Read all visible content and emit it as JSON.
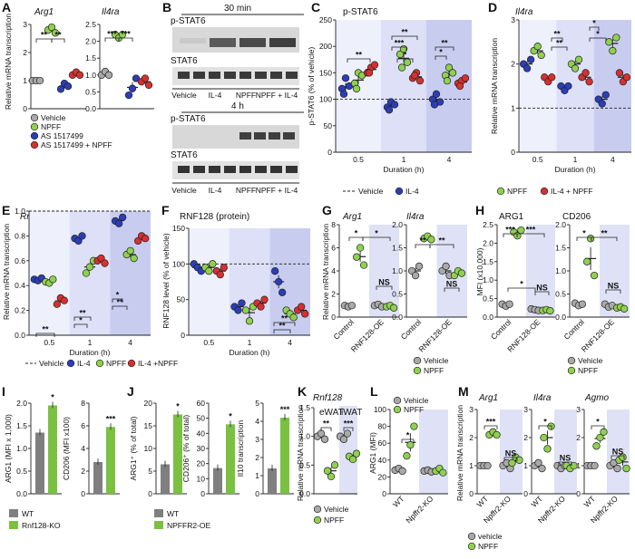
{
  "colors": {
    "vehicle": "#a9a9a9",
    "il4": "#2b3db8",
    "npff": "#8fd14f",
    "il4npff": "#d7302f",
    "wt": "#7f7f7f",
    "ko": "#7ac142"
  },
  "panels": {
    "A": {
      "label": "A",
      "ylabel": "Relative mRNA transcription",
      "gene1": "Arg1",
      "gene2": "Il4ra",
      "yticks": [
        "0",
        "1",
        "2",
        "3"
      ],
      "y2ticks": [
        "0.0",
        "0.5",
        "1.0",
        "1.5",
        "2.0",
        "2.5"
      ],
      "legend": [
        "Vehicle",
        "NPFF",
        "AS 1517499",
        "AS 1517499 + NPFF"
      ],
      "sig1": [
        "**",
        "**"
      ],
      "sig2": [
        "***",
        "***"
      ]
    },
    "B": {
      "label": "B",
      "t1": "30 min",
      "t2": "4 h",
      "row1": "p-STAT6",
      "row2": "STAT6",
      "lanes": [
        "Vehicle",
        "IL-4",
        "NPFF",
        "NPFF + IL-4"
      ]
    },
    "C": {
      "label": "C",
      "title": "p-STAT6",
      "ylabel": "p-STAT6 (% of vehicle)",
      "xlabel": "Duration (h)",
      "xt": [
        "0.5",
        "1",
        "4"
      ],
      "yticks": [
        "0",
        "50",
        "100",
        "150",
        "200",
        "250"
      ],
      "legend": [
        "Vehicle",
        "IL-4",
        "NPFF",
        "IL-4 + NPFF"
      ]
    },
    "D": {
      "label": "D",
      "title": "Il4ra",
      "ylabel": "Relative mRNA transcription",
      "xlabel": "Duration (h)",
      "xt": [
        "0.5",
        "1",
        "4"
      ],
      "yticks": [
        "0",
        "1",
        "2",
        "3"
      ]
    },
    "E": {
      "label": "E",
      "title": "Rnf128",
      "ylabel": "Relative mRNA transcription",
      "xlabel": "Duration (h)",
      "xt": [
        "0.5",
        "1",
        "4"
      ],
      "yticks": [
        "0.0",
        "0.2",
        "0.4",
        "0.6",
        "0.8",
        "1.0"
      ],
      "legend": [
        "Vehicle",
        "IL-4",
        "NPFF",
        "IL-4 +NPFF"
      ]
    },
    "F": {
      "label": "F",
      "title": "RNF128 (protein)",
      "ylabel": "RNF128 level (% of vehicle)",
      "xlabel": "Duration (h)",
      "xt": [
        "0.5",
        "1",
        "4"
      ],
      "yticks": [
        "0",
        "50",
        "100",
        "150"
      ]
    },
    "G": {
      "label": "G",
      "gene1": "Arg1",
      "gene2": "Il4ra",
      "ylabel": "Relative mRNA transcription",
      "xt": [
        "Control",
        "RNF128-OE"
      ],
      "yticks": [
        "0",
        "2",
        "4",
        "6",
        "8"
      ],
      "y2ticks": [
        "0.0",
        "0.5",
        "1.0",
        "1.5",
        "2.0"
      ],
      "legend": [
        "Vehicle",
        "NPFF"
      ]
    },
    "H": {
      "label": "H",
      "t1": "ARG1",
      "t2": "CD206",
      "ylabel": "MFI (x10,000)",
      "xt": [
        "Control",
        "RNF128-OE"
      ],
      "yticks": [
        "0.0",
        "0.5",
        "1.0",
        "1.5",
        "2.0",
        "2.5"
      ],
      "y2ticks": [
        "0.0",
        "0.5",
        "1.0",
        "1.5",
        "2.0"
      ],
      "legend": [
        "Vehicle",
        "NPFF"
      ]
    },
    "I": {
      "label": "I",
      "y1": "ARG1 (MFI x 1,000)",
      "y2": "CD206 (MFI x100)",
      "y1t": [
        "0.0",
        "0.5",
        "1.0",
        "1.5",
        "2.0"
      ],
      "y2t": [
        "0",
        "2",
        "4",
        "6",
        "8"
      ],
      "legend": [
        "WT",
        "Rnf128-KO"
      ]
    },
    "J": {
      "label": "J",
      "y1": "ARG1⁺ (% of total)",
      "y2": "CD206⁺ (% of total)",
      "y3": "Il10 transcription",
      "y1t": [
        "0",
        "5",
        "10",
        "15",
        "20"
      ],
      "y2t": [
        "0",
        "10",
        "20",
        "30",
        "40",
        "50",
        "60"
      ],
      "y3t": [
        "0",
        "1",
        "2",
        "3",
        "4",
        "5"
      ],
      "legend": [
        "WT",
        "NPFFR2-OE"
      ]
    },
    "K": {
      "label": "K",
      "title": "Rnf128",
      "ylabel": "Relative mRNA transcription",
      "s1": "eWAT",
      "s2": "iWAT",
      "yticks": [
        "0.0",
        "0.5",
        "1.0",
        "1.5"
      ],
      "legend": [
        "Vehicle",
        "NPFF"
      ]
    },
    "L": {
      "label": "L",
      "ylabel": "ARG1 (MFI)",
      "xt": [
        "WT",
        "Npffr2-KO"
      ],
      "yticks": [
        "0",
        "20",
        "40",
        "60",
        "80",
        "100"
      ],
      "legend": [
        "Vehicle",
        "NPFF"
      ]
    },
    "M": {
      "label": "M",
      "g1": "Arg1",
      "g2": "Il4ra",
      "g3": "Agmo",
      "ylabel": "Relative mRNA transcription",
      "xt": [
        "WT",
        "Npffr2-KO"
      ],
      "y1t": [
        "0",
        "1",
        "2",
        "3"
      ],
      "y2t": [
        "0",
        "1",
        "2",
        "3"
      ],
      "y3t": [
        "0",
        "1",
        "2",
        "3"
      ],
      "legend": [
        "vehicle",
        "NPFF"
      ]
    }
  },
  "chart_data": [
    {
      "panel": "A",
      "type": "scatter",
      "series": [
        {
          "name": "Vehicle",
          "Arg1": [
            1.0,
            1.0,
            1.0
          ],
          "Il4ra": [
            1.0,
            1.1,
            1.0
          ]
        },
        {
          "name": "NPFF",
          "Arg1": [
            2.8,
            2.9,
            2.7
          ],
          "Il4ra": [
            2.2,
            2.1,
            2.2
          ]
        },
        {
          "name": "AS 1517499",
          "Arg1": [
            0.7,
            0.9,
            0.8
          ],
          "Il4ra": [
            0.4,
            0.6,
            0.9
          ]
        },
        {
          "name": "AS 1517499 + NPFF",
          "Arg1": [
            1.2,
            1.3,
            1.2
          ],
          "Il4ra": [
            0.8,
            0.9,
            0.7
          ]
        }
      ]
    },
    {
      "panel": "C",
      "type": "scatter",
      "x": [
        "0.5",
        "1",
        "4"
      ],
      "series": [
        {
          "name": "IL-4",
          "values": [
            [
              120,
              140,
              125,
              110
            ],
            [
              85,
              95,
              90,
              80
            ],
            [
              100,
              110,
              95,
              90
            ]
          ]
        },
        {
          "name": "NPFF",
          "values": [
            [
              130,
              150,
              145,
              120
            ],
            [
              185,
              195,
              170,
              160
            ],
            [
              145,
              160,
              150,
              135
            ]
          ]
        },
        {
          "name": "IL-4 + NPFF",
          "values": [
            [
              150,
              160,
              165,
              150
            ],
            [
              140,
              150,
              135,
              145
            ],
            [
              130,
              135,
              140,
              125
            ]
          ]
        }
      ]
    },
    {
      "panel": "D",
      "type": "scatter",
      "x": [
        "0.5",
        "1",
        "4"
      ],
      "series": [
        {
          "name": "IL-4",
          "values": [
            [
              2.0,
              1.9,
              2.1
            ],
            [
              1.5,
              1.4,
              1.5
            ],
            [
              1.2,
              1.1,
              1.3
            ]
          ]
        },
        {
          "name": "NPFF",
          "values": [
            [
              2.3,
              2.4,
              2.2
            ],
            [
              2.0,
              1.9,
              2.1
            ],
            [
              2.5,
              2.3,
              2.6
            ]
          ]
        },
        {
          "name": "IL-4 + NPFF",
          "values": [
            [
              1.7,
              1.6,
              1.7
            ],
            [
              1.7,
              1.8,
              1.6
            ],
            [
              1.8,
              1.6,
              1.7
            ]
          ]
        }
      ]
    },
    {
      "panel": "E",
      "type": "scatter",
      "x": [
        "0.5",
        "1",
        "4"
      ],
      "series": [
        {
          "name": "IL-4",
          "values": [
            [
              0.45,
              0.44,
              0.46
            ],
            [
              0.78,
              0.76,
              0.8
            ],
            [
              0.92,
              0.9,
              0.95
            ]
          ]
        },
        {
          "name": "NPFF",
          "values": [
            [
              0.43,
              0.42,
              0.45
            ],
            [
              0.5,
              0.55,
              0.6
            ],
            [
              0.65,
              0.68,
              0.62
            ]
          ]
        },
        {
          "name": "IL-4 +NPFF",
          "values": [
            [
              0.25,
              0.3,
              0.28
            ],
            [
              0.6,
              0.62,
              0.58
            ],
            [
              0.76,
              0.8,
              0.78
            ]
          ]
        }
      ]
    },
    {
      "panel": "F",
      "type": "scatter",
      "x": [
        "0.5",
        "1",
        "4"
      ],
      "series": [
        {
          "name": "IL-4",
          "values": [
            [
              100,
              95,
              90
            ],
            [
              40,
              35,
              45
            ],
            [
              90,
              75,
              60
            ]
          ]
        },
        {
          "name": "NPFF",
          "values": [
            [
              95,
              90,
              100
            ],
            [
              35,
              20,
              40
            ],
            [
              35,
              30,
              25
            ]
          ]
        },
        {
          "name": "IL-4 + NPFF",
          "values": [
            [
              90,
              85,
              95
            ],
            [
              45,
              40,
              50
            ],
            [
              35,
              40,
              30
            ]
          ]
        }
      ]
    },
    {
      "panel": "G",
      "type": "scatter",
      "x": [
        "Control",
        "RNF128-OE"
      ],
      "series": [
        {
          "name": "Vehicle",
          "Arg1": [
            [
              1.0,
              0.9,
              1.0
            ],
            [
              1.0,
              1.1,
              0.9
            ]
          ],
          "Il4ra": [
            [
              1.0,
              0.9,
              1.1
            ],
            [
              1.0,
              1.1,
              0.9
            ]
          ]
        },
        {
          "name": "NPFF",
          "Arg1": [
            [
              5.2,
              6.0,
              4.5
            ],
            [
              0.9,
              1.0,
              0.8
            ]
          ],
          "Il4ra": [
            [
              1.7,
              1.75,
              1.68
            ],
            [
              0.9,
              1.0,
              0.95
            ]
          ]
        }
      ]
    },
    {
      "panel": "H",
      "type": "scatter",
      "x": [
        "Control",
        "RNF128-OE"
      ],
      "series": [
        {
          "name": "Vehicle",
          "ARG1": [
            [
              0.35,
              0.3,
              0.35
            ],
            [
              0.22,
              0.2,
              0.18
            ]
          ],
          "CD206": [
            [
              0.3,
              0.25,
              0.28
            ],
            [
              0.28,
              0.22,
              0.25
            ]
          ]
        },
        {
          "name": "NPFF",
          "ARG1": [
            [
              2.3,
              2.2,
              2.35
            ],
            [
              0.18,
              0.2,
              0.17
            ]
          ],
          "CD206": [
            [
              1.2,
              1.7,
              0.9
            ],
            [
              0.2,
              0.22,
              0.18
            ]
          ]
        }
      ]
    },
    {
      "panel": "I",
      "type": "bar",
      "categories": [
        "WT",
        "Rnf128-KO"
      ],
      "ARG1": [
        1.35,
        1.95
      ],
      "CD206": [
        2.8,
        5.9
      ]
    },
    {
      "panel": "J",
      "type": "bar",
      "categories": [
        "WT",
        "NPFFR2-OE"
      ],
      "ARG1": [
        6.5,
        17.5
      ],
      "CD206": [
        17,
        46
      ],
      "Il10": [
        1.4,
        4.2
      ]
    },
    {
      "panel": "K",
      "type": "scatter",
      "series": [
        {
          "name": "Vehicle",
          "eWAT": [
            1.0,
            1.05,
            0.95
          ],
          "iWAT": [
            1.0,
            0.95,
            1.05
          ]
        },
        {
          "name": "NPFF",
          "eWAT": [
            0.4,
            0.3,
            0.5
          ],
          "iWAT": [
            0.65,
            0.6,
            0.7
          ]
        }
      ]
    },
    {
      "panel": "L",
      "type": "scatter",
      "x": [
        "WT",
        "Npffr2-KO"
      ],
      "series": [
        {
          "name": "Vehicle",
          "values": [
            [
              28,
              30,
              27
            ],
            [
              27,
              28,
              26
            ]
          ]
        },
        {
          "name": "NPFF",
          "values": [
            [
              45,
              58,
              80
            ],
            [
              27,
              30,
              25
            ]
          ]
        }
      ]
    },
    {
      "panel": "M",
      "type": "scatter",
      "x": [
        "WT",
        "Npffr2-KO"
      ],
      "series": [
        {
          "name": "vehicle",
          "Arg1": [
            [
              1.0,
              1.0,
              1.0
            ],
            [
              1.0,
              1.1,
              0.9
            ]
          ],
          "Il4ra": [
            [
              1.0,
              1.1,
              0.9
            ],
            [
              1.0,
              0.9,
              1.0
            ]
          ],
          "Agmo": [
            [
              1.0,
              1.0,
              1.0
            ],
            [
              1.0,
              1.1,
              0.9
            ]
          ]
        },
        {
          "name": "NPFF",
          "Arg1": [
            [
              2.1,
              2.2,
              2.1
            ],
            [
              1.1,
              1.3,
              1.2
            ]
          ],
          "Il4ra": [
            [
              2.0,
              1.6,
              2.4
            ],
            [
              1.0,
              0.9,
              1.0
            ]
          ],
          "Agmo": [
            [
              1.7,
              2.0,
              2.2
            ],
            [
              1.2,
              1.3,
              0.9
            ]
          ]
        }
      ]
    }
  ]
}
